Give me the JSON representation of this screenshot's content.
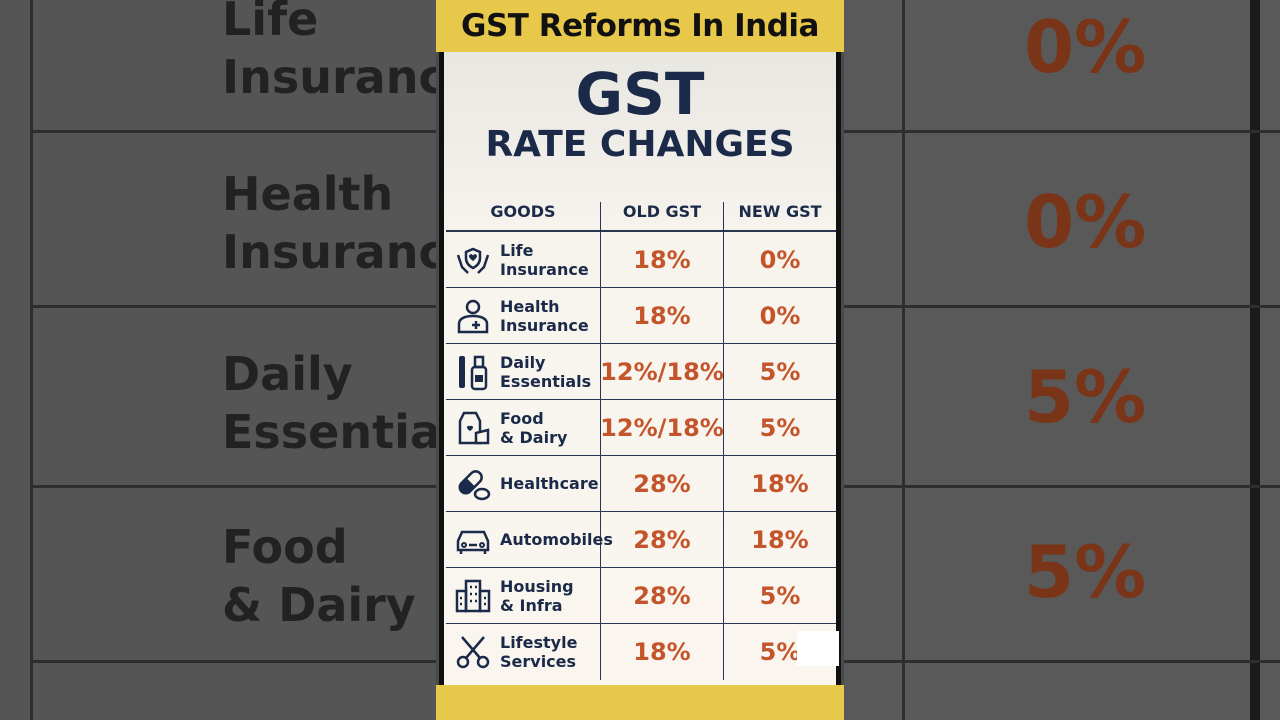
{
  "banner": {
    "title": "GST Reforms In India"
  },
  "panel": {
    "title": "GST",
    "subtitle": "RATE CHANGES"
  },
  "table": {
    "headers": [
      "GOODS",
      "OLD GST",
      "NEW GST"
    ],
    "rows": [
      {
        "name": "Life\nInsurance",
        "old": "18%",
        "new": "0%",
        "icon": "hands-heart-icon"
      },
      {
        "name": "Health\nInsurance",
        "old": "18%",
        "new": "0%",
        "icon": "person-medical-icon"
      },
      {
        "name": "Daily\nEssentials",
        "old": "12%/18%",
        "new": "5%",
        "icon": "comb-bottle-icon"
      },
      {
        "name": "Food\n& Dairy",
        "old": "12%/18%",
        "new": "5%",
        "icon": "milk-cheese-icon"
      },
      {
        "name": "Healthcare",
        "old": "28%",
        "new": "18%",
        "icon": "pill-icon"
      },
      {
        "name": "Automobiles",
        "old": "28%",
        "new": "18%",
        "icon": "car-icon"
      },
      {
        "name": "Housing\n& Infra",
        "old": "28%",
        "new": "5%",
        "icon": "building-icon"
      },
      {
        "name": "Lifestyle\nServices",
        "old": "18%",
        "new": "5%",
        "icon": "scissors-icon"
      }
    ]
  },
  "colors": {
    "banner": "#e8c84a",
    "heading": "#1b2a48",
    "rate": "#c4552a"
  }
}
